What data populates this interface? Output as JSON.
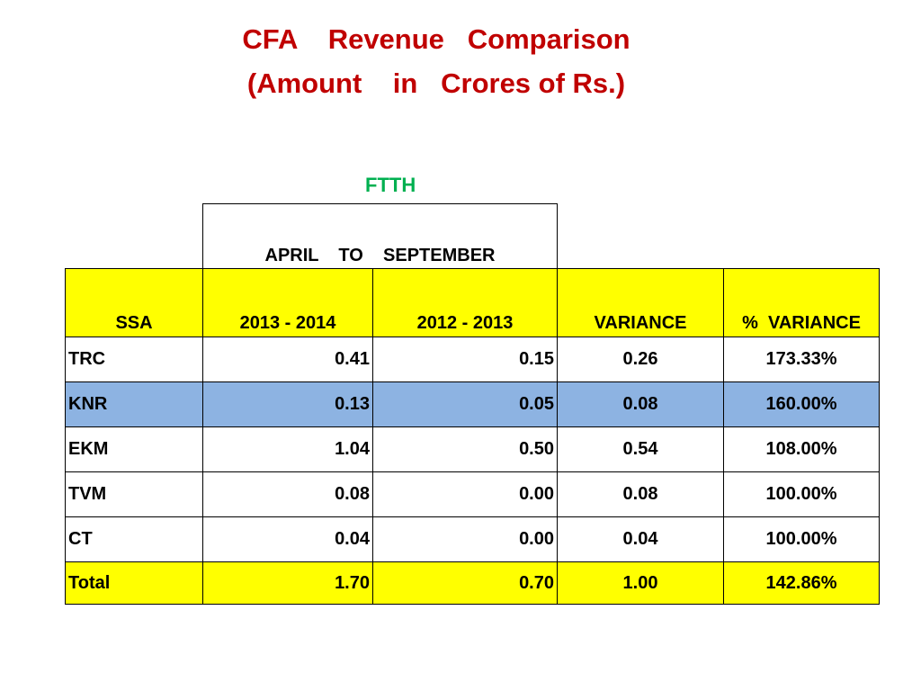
{
  "title": {
    "line1": "CFA    Revenue   Comparison",
    "line2": "(Amount    in   Crores of Rs.)"
  },
  "section_label": "FTTH",
  "period_label": "APRIL    TO    SEPTEMBER",
  "headers": [
    "SSA",
    "2013 - 2014",
    "2012 - 2013",
    "VARIANCE",
    "%  VARIANCE"
  ],
  "rows": [
    {
      "ssa": "TRC",
      "y2013": "0.41",
      "y2012": "0.15",
      "variance": "0.26",
      "pct": "173.33%"
    },
    {
      "ssa": "KNR",
      "y2013": "0.13",
      "y2012": "0.05",
      "variance": "0.08",
      "pct": "160.00%"
    },
    {
      "ssa": "EKM",
      "y2013": "1.04",
      "y2012": "0.50",
      "variance": "0.54",
      "pct": "108.00%"
    },
    {
      "ssa": "TVM",
      "y2013": "0.08",
      "y2012": "0.00",
      "variance": "0.08",
      "pct": "100.00%"
    },
    {
      "ssa": "CT",
      "y2013": "0.04",
      "y2012": "0.00",
      "variance": "0.04",
      "pct": "100.00%"
    }
  ],
  "total": {
    "ssa": "Total",
    "y2013": "1.70",
    "y2012": "0.70",
    "variance": "1.00",
    "pct": "142.86%"
  },
  "colors": {
    "title": "#c00000",
    "section_label": "#00b050",
    "header_fill": "#ffff00",
    "highlight_row_fill": "#8db3e2",
    "total_fill": "#ffff00"
  }
}
